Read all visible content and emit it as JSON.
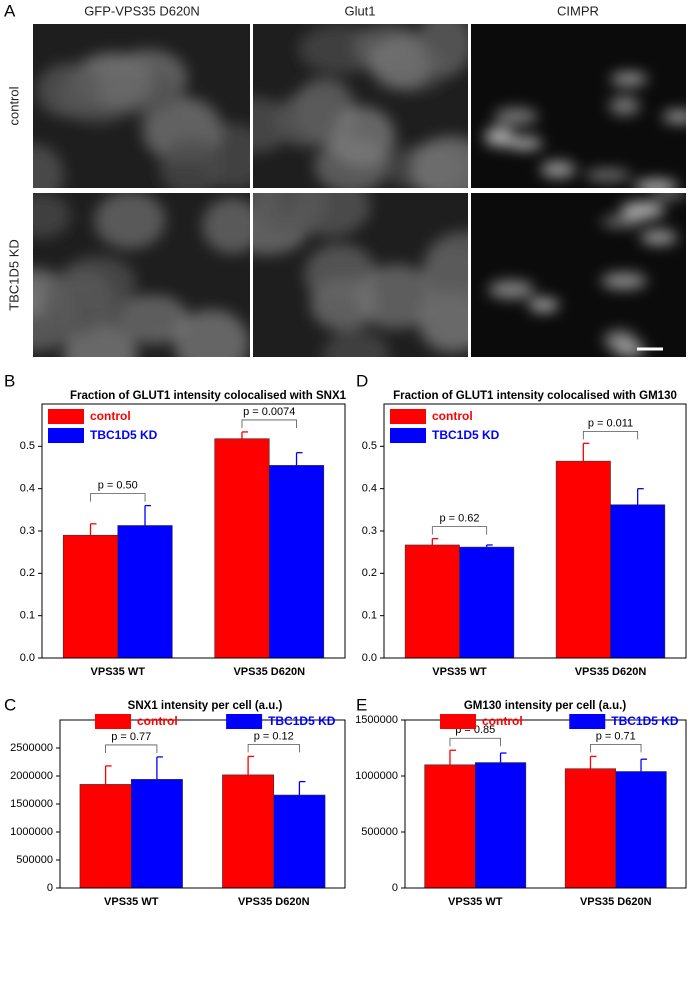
{
  "panel_a": {
    "label": "A",
    "column_headers": [
      "GFP-VPS35 D620N",
      "Glut1",
      "CIMPR"
    ],
    "row_labels": [
      "control",
      "TBC1D5 KD"
    ]
  },
  "chart_data": [
    {
      "type": "bar",
      "panel": "B",
      "title": "Fraction of GLUT1 intensity colocalised with SNX1",
      "categories": [
        "VPS35 WT",
        "VPS35 D620N"
      ],
      "series": [
        {
          "name": "control",
          "color": "#ff0000",
          "values": [
            0.29,
            0.518
          ],
          "errors": [
            0.027,
            0.016
          ]
        },
        {
          "name": "TBC1D5 KD",
          "color": "#0000ff",
          "values": [
            0.313,
            0.455
          ],
          "errors": [
            0.047,
            0.03
          ]
        }
      ],
      "annotations": [
        "p = 0.50",
        "p = 0.0074"
      ],
      "ylim": [
        0,
        0.6
      ],
      "yticks": [
        {
          "value": 0,
          "label": "0.0"
        },
        0.1,
        0.2,
        0.3,
        0.4,
        0.5
      ],
      "legend": "upper left"
    },
    {
      "type": "bar",
      "panel": "D",
      "title": "Fraction of GLUT1 intensity colocalised with GM130",
      "categories": [
        "VPS35 WT",
        "VPS35 D620N"
      ],
      "series": [
        {
          "name": "control",
          "color": "#ff0000",
          "values": [
            0.267,
            0.465
          ],
          "errors": [
            0.015,
            0.042
          ]
        },
        {
          "name": "TBC1D5 KD",
          "color": "#0000ff",
          "values": [
            0.262,
            0.362
          ],
          "errors": [
            0.005,
            0.038
          ]
        }
      ],
      "annotations": [
        "p = 0.62",
        "p = 0.011"
      ],
      "ylim": [
        0,
        0.6
      ],
      "yticks": [
        {
          "value": 0,
          "label": "0.0"
        },
        0.1,
        0.2,
        0.3,
        0.4,
        0.5
      ],
      "legend": "upper left"
    },
    {
      "type": "bar",
      "panel": "C",
      "title": "SNX1 intensity per cell (a.u.)",
      "categories": [
        "VPS35 WT",
        "VPS35 D620N"
      ],
      "series": [
        {
          "name": "control",
          "color": "#ff0000",
          "values": [
            1850000,
            2020000
          ],
          "errors": [
            330000,
            330000
          ]
        },
        {
          "name": "TBC1D5 KD",
          "color": "#0000ff",
          "values": [
            1940000,
            1660000
          ],
          "errors": [
            400000,
            240000
          ]
        }
      ],
      "annotations": [
        "p = 0.77",
        "p = 0.12"
      ],
      "ylim": [
        0,
        3000000
      ],
      "yticks": [
        0,
        500000,
        1000000,
        1500000,
        2000000,
        2500000
      ],
      "legend": "upper center"
    },
    {
      "type": "bar",
      "panel": "E",
      "title": "GM130 intensity per cell (a.u.)",
      "categories": [
        "VPS35 WT",
        "VPS35 D620N"
      ],
      "series": [
        {
          "name": "control",
          "color": "#ff0000",
          "values": [
            1100000,
            1065000
          ],
          "errors": [
            130000,
            110000
          ]
        },
        {
          "name": "TBC1D5 KD",
          "color": "#0000ff",
          "values": [
            1120000,
            1040000
          ],
          "errors": [
            85000,
            110000
          ]
        }
      ],
      "annotations": [
        "p = 0.85",
        "p = 0.71"
      ],
      "ylim": [
        0,
        1500000
      ],
      "yticks": [
        0,
        500000,
        1000000,
        1500000
      ],
      "legend": "upper center"
    }
  ]
}
